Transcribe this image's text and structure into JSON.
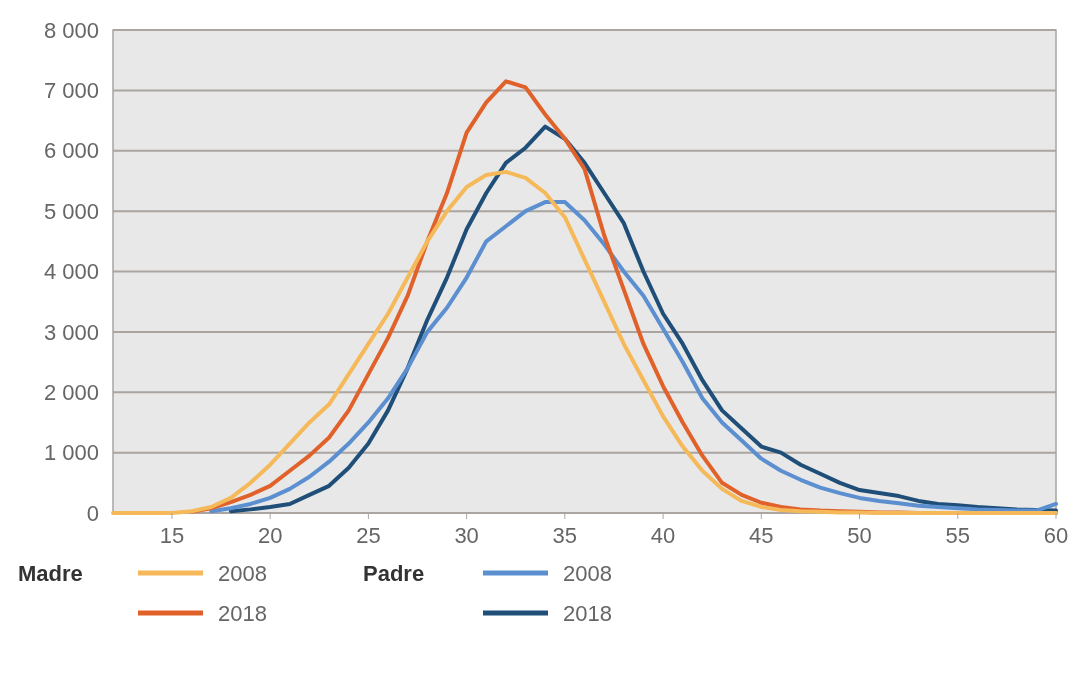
{
  "chart_data": {
    "type": "line",
    "x": [
      12,
      13,
      14,
      15,
      16,
      17,
      18,
      19,
      20,
      21,
      22,
      23,
      24,
      25,
      26,
      27,
      28,
      29,
      30,
      31,
      32,
      33,
      34,
      35,
      36,
      37,
      38,
      39,
      40,
      41,
      42,
      43,
      44,
      45,
      46,
      47,
      48,
      49,
      50,
      51,
      52,
      53,
      54,
      55,
      56,
      57,
      58,
      59,
      60
    ],
    "series": [
      {
        "name": "2008",
        "color": "#f5b95a",
        "values": [
          0,
          0,
          0,
          0,
          30,
          100,
          250,
          500,
          800,
          1150,
          1500,
          1800,
          2300,
          2800,
          3300,
          3900,
          4500,
          5000,
          5400,
          5600,
          5650,
          5550,
          5300,
          4900,
          4200,
          3500,
          2800,
          2200,
          1600,
          1100,
          700,
          400,
          200,
          100,
          50,
          30,
          20,
          10,
          10,
          0,
          0,
          0,
          0,
          0,
          0,
          0,
          0,
          0,
          0
        ]
      },
      {
        "name": "2018",
        "color": "#e0622a",
        "values": [
          null,
          null,
          null,
          null,
          20,
          80,
          180,
          300,
          450,
          700,
          950,
          1250,
          1700,
          2300,
          2900,
          3600,
          4500,
          5300,
          6300,
          6800,
          7150,
          7050,
          6600,
          6200,
          5700,
          4600,
          3700,
          2800,
          2100,
          1500,
          950,
          500,
          300,
          170,
          100,
          60,
          40,
          30,
          20,
          10,
          10,
          0,
          0,
          0,
          0,
          0,
          0,
          0,
          0
        ]
      },
      {
        "name": "2008",
        "color": "#5b8fd0",
        "values": [
          null,
          null,
          null,
          null,
          null,
          30,
          80,
          150,
          250,
          400,
          600,
          850,
          1150,
          1500,
          1900,
          2400,
          3000,
          3400,
          3900,
          4500,
          4750,
          5000,
          5150,
          5150,
          4850,
          4450,
          4000,
          3600,
          3050,
          2500,
          1900,
          1500,
          1200,
          900,
          700,
          550,
          420,
          330,
          250,
          200,
          160,
          120,
          100,
          80,
          60,
          50,
          40,
          40,
          150
        ]
      },
      {
        "name": "2018",
        "color": "#1f4e79",
        "values": [
          null,
          null,
          null,
          null,
          null,
          null,
          30,
          60,
          100,
          150,
          300,
          450,
          750,
          1150,
          1700,
          2400,
          3200,
          3900,
          4700,
          5300,
          5800,
          6050,
          6400,
          6200,
          5800,
          5300,
          4800,
          4000,
          3300,
          2800,
          2200,
          1700,
          1400,
          1100,
          1000,
          800,
          650,
          500,
          380,
          330,
          280,
          200,
          150,
          130,
          100,
          80,
          60,
          50,
          40
        ]
      }
    ],
    "annotations": [
      "Madre",
      "Padre"
    ],
    "xlim": [
      12,
      60
    ],
    "xticks": [
      15,
      20,
      25,
      30,
      35,
      40,
      45,
      50,
      55,
      60
    ],
    "ylim": [
      0,
      8000
    ],
    "yticks": [
      {
        "value": 0,
        "label": "0"
      },
      {
        "value": 1000,
        "label": "1 000"
      },
      {
        "value": 2000,
        "label": "2 000"
      },
      {
        "value": 3000,
        "label": "3 000"
      },
      {
        "value": 4000,
        "label": "4 000"
      },
      {
        "value": 5000,
        "label": "5 000"
      },
      {
        "value": 6000,
        "label": "6 000"
      },
      {
        "value": 7000,
        "label": "7 000"
      },
      {
        "value": 8000,
        "label": "8 000"
      }
    ],
    "grid": "y",
    "legend": "bottom",
    "line_style": "solid",
    "marker": "none"
  }
}
